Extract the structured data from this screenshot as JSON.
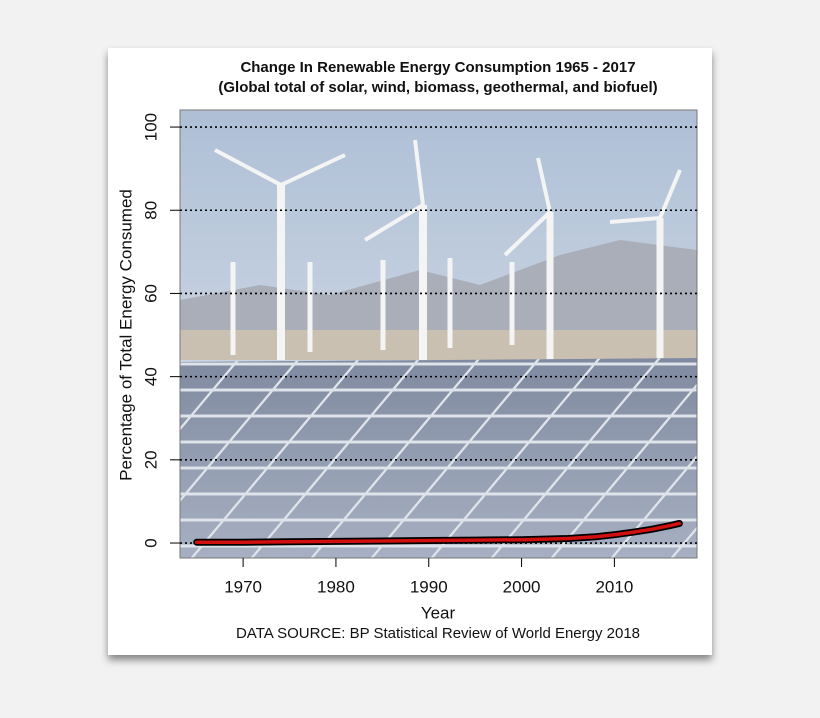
{
  "chart_data": {
    "type": "line",
    "title": "Change In Renewable Energy Consumption 1965 - 2017",
    "subtitle": "(Global total of solar, wind, biomass, geothermal, and biofuel)",
    "xlabel": "Year",
    "ylabel": "Percentage of Total Energy Consumed",
    "source": "DATA SOURCE: BP Statistical Review of World Energy 2018",
    "x": [
      1965,
      1970,
      1975,
      1980,
      1985,
      1990,
      1995,
      2000,
      2005,
      2008,
      2010,
      2012,
      2014,
      2016,
      2017
    ],
    "values": [
      0.2,
      0.2,
      0.3,
      0.4,
      0.5,
      0.6,
      0.7,
      0.8,
      1.1,
      1.5,
      2.0,
      2.6,
      3.3,
      4.2,
      4.7
    ],
    "color": "#d10f0f",
    "outline_color": "#000000",
    "xlim": [
      1963.2,
      2018.9
    ],
    "xticks": [
      1970,
      1980,
      1990,
      2000,
      2010
    ],
    "ylim": [
      -3.6,
      104.1
    ],
    "yticks": [
      0,
      20,
      40,
      60,
      80,
      100
    ],
    "grid": true
  }
}
